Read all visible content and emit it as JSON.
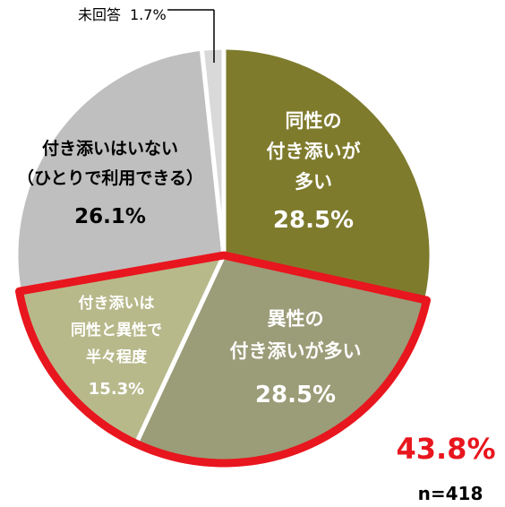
{
  "chart_data": {
    "type": "pie",
    "slices": [
      {
        "label_lines": [
          "同性の",
          "付き添いが",
          "多い"
        ],
        "value": 28.5,
        "value_label": "28.5%",
        "color": "#7f7b2d"
      },
      {
        "label_lines": [
          "異性の",
          "付き添いが多い"
        ],
        "value": 28.5,
        "value_label": "28.5%",
        "color": "#9b9c78"
      },
      {
        "label_lines": [
          "付き添いは",
          "同性と異性で",
          "半々程度"
        ],
        "value": 15.3,
        "value_label": "15.3%",
        "color": "#b8b98b"
      },
      {
        "label_lines": [
          "付き添いはいない",
          "（ひとりで利用できる）"
        ],
        "value": 26.1,
        "value_label": "26.1%",
        "color": "#bfbfbf"
      },
      {
        "label_lines": [
          "未回答"
        ],
        "value": 1.7,
        "value_label": "1.7%",
        "color": "#d9d9d9"
      }
    ],
    "highlight": {
      "slices": [
        1,
        2
      ],
      "color": "#e8161e",
      "total_label": "43.8%"
    },
    "sample_label": "n=418"
  }
}
